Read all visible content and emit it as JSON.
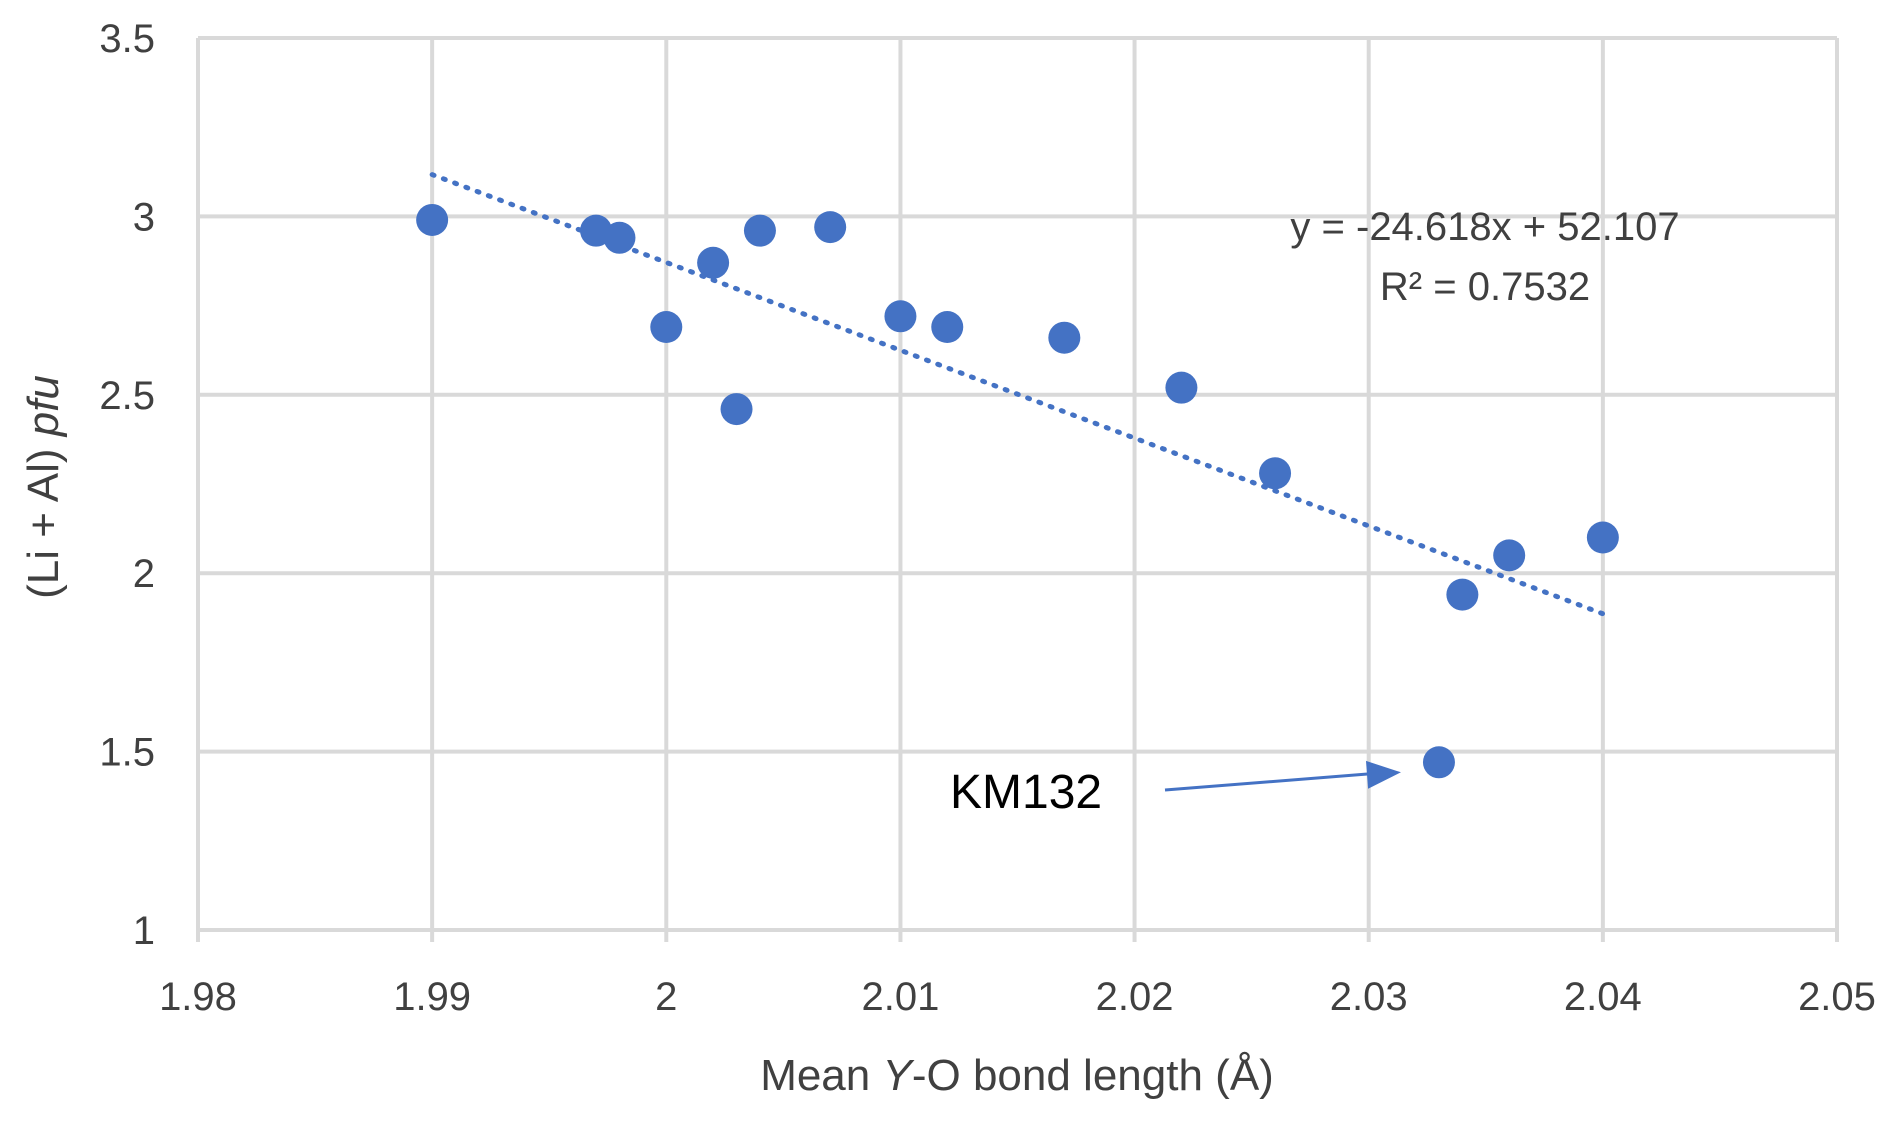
{
  "chart_data": {
    "type": "scatter",
    "title": "",
    "xlabel_parts": [
      "Mean ",
      "Y",
      "-O bond length (Å)"
    ],
    "ylabel_parts": [
      "(Li + Al) ",
      "pfu"
    ],
    "xlim": [
      1.98,
      2.05
    ],
    "ylim": [
      1,
      3.5
    ],
    "x_ticks": [
      "1.98",
      "1.99",
      "2",
      "2.01",
      "2.02",
      "2.03",
      "2.04",
      "2.05"
    ],
    "y_ticks": [
      "1",
      "1.5",
      "2",
      "2.5",
      "3",
      "3.5"
    ],
    "grid": true,
    "point_color": "#4472C4",
    "series": [
      {
        "points": [
          {
            "x": 1.99,
            "y": 2.99
          },
          {
            "x": 1.997,
            "y": 2.96
          },
          {
            "x": 1.998,
            "y": 2.94
          },
          {
            "x": 2.0,
            "y": 2.69
          },
          {
            "x": 2.002,
            "y": 2.87
          },
          {
            "x": 2.003,
            "y": 2.46
          },
          {
            "x": 2.004,
            "y": 2.96
          },
          {
            "x": 2.007,
            "y": 2.97
          },
          {
            "x": 2.01,
            "y": 2.72
          },
          {
            "x": 2.012,
            "y": 2.69
          },
          {
            "x": 2.017,
            "y": 2.66
          },
          {
            "x": 2.022,
            "y": 2.52
          },
          {
            "x": 2.026,
            "y": 2.28
          },
          {
            "x": 2.033,
            "y": 1.47
          },
          {
            "x": 2.034,
            "y": 1.94
          },
          {
            "x": 2.036,
            "y": 2.05
          },
          {
            "x": 2.04,
            "y": 2.1
          }
        ]
      }
    ],
    "trendline": {
      "type": "linear",
      "slope": -24.618,
      "intercept": 52.107,
      "x_range": [
        1.99,
        2.04
      ],
      "style": "dotted",
      "equation_label": "y = -24.618x + 52.107",
      "r2_label": "R² = 0.7532"
    },
    "annotations": [
      {
        "text": "KM132",
        "target_x": 2.033,
        "target_y": 1.47
      }
    ]
  }
}
